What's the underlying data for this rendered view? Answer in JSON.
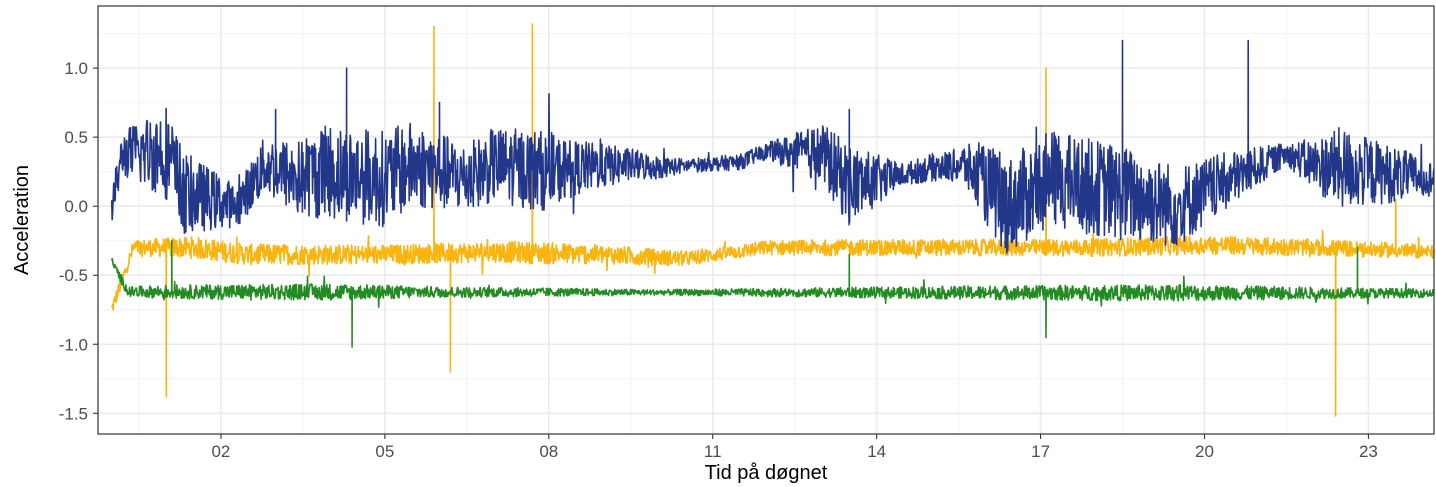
{
  "chart_data": {
    "type": "line",
    "title": "",
    "xlabel": "Tid på døgnet",
    "ylabel": "Acceleration",
    "xlim": [
      -0.25,
      24.2
    ],
    "ylim": [
      -1.65,
      1.45
    ],
    "x_ticks": [
      2,
      5,
      8,
      11,
      14,
      17,
      20,
      23
    ],
    "x_tick_labels": [
      "02",
      "05",
      "08",
      "11",
      "14",
      "17",
      "20",
      "23"
    ],
    "y_ticks": [
      1.0,
      0.5,
      0.0,
      -0.5,
      -1.0,
      -1.5
    ],
    "y_tick_labels": [
      "1.0",
      "0.5",
      "0.0",
      "-0.5",
      "-1.0",
      "-1.5"
    ],
    "grid": true,
    "legend": "none",
    "theme": "bw",
    "series": [
      {
        "color": "#22378a",
        "baseline": [
          [
            0.0,
            0.0
          ],
          [
            0.2,
            0.38
          ],
          [
            1.0,
            0.4
          ],
          [
            1.3,
            0.1
          ],
          [
            2.3,
            0.0
          ],
          [
            2.8,
            0.3
          ],
          [
            3.4,
            0.2
          ],
          [
            4.0,
            0.25
          ],
          [
            5.0,
            0.2
          ],
          [
            5.5,
            0.3
          ],
          [
            6.5,
            0.2
          ],
          [
            7.0,
            0.3
          ],
          [
            8.0,
            0.25
          ],
          [
            8.5,
            0.28
          ],
          [
            9.5,
            0.3
          ],
          [
            10.0,
            0.28
          ],
          [
            11.5,
            0.32
          ],
          [
            12.0,
            0.4
          ],
          [
            13.0,
            0.38
          ],
          [
            13.5,
            0.15
          ],
          [
            14.2,
            0.2
          ],
          [
            15.0,
            0.28
          ],
          [
            15.6,
            0.3
          ],
          [
            16.4,
            0.0
          ],
          [
            17.2,
            0.2
          ],
          [
            18.4,
            0.1
          ],
          [
            19.5,
            0.0
          ],
          [
            20.5,
            0.2
          ],
          [
            21.5,
            0.38
          ],
          [
            22.0,
            0.3
          ],
          [
            23.0,
            0.25
          ],
          [
            24.2,
            0.2
          ]
        ],
        "noise": [
          [
            0.0,
            0.12
          ],
          [
            1.0,
            0.35
          ],
          [
            2.3,
            0.15
          ],
          [
            4.0,
            0.35
          ],
          [
            5.0,
            0.35
          ],
          [
            6.5,
            0.25
          ],
          [
            7.8,
            0.3
          ],
          [
            8.5,
            0.2
          ],
          [
            9.5,
            0.12
          ],
          [
            10.5,
            0.05
          ],
          [
            12.0,
            0.06
          ],
          [
            13.5,
            0.3
          ],
          [
            14.5,
            0.08
          ],
          [
            15.5,
            0.12
          ],
          [
            16.2,
            0.35
          ],
          [
            17.0,
            0.35
          ],
          [
            18.5,
            0.35
          ],
          [
            19.5,
            0.3
          ],
          [
            20.5,
            0.2
          ],
          [
            21.5,
            0.08
          ],
          [
            22.5,
            0.3
          ],
          [
            23.5,
            0.2
          ],
          [
            24.2,
            0.12
          ]
        ],
        "spikes": [
          [
            4.3,
            1.0
          ],
          [
            18.5,
            1.2
          ],
          [
            20.8,
            1.2
          ],
          [
            3.0,
            0.7
          ],
          [
            13.5,
            0.7
          ],
          [
            6.0,
            0.75
          ]
        ]
      },
      {
        "color": "#fbb40d",
        "baseline": [
          [
            0.0,
            -0.75
          ],
          [
            0.4,
            -0.3
          ],
          [
            1.5,
            -0.3
          ],
          [
            2.5,
            -0.35
          ],
          [
            5.0,
            -0.35
          ],
          [
            7.0,
            -0.33
          ],
          [
            9.0,
            -0.35
          ],
          [
            10.5,
            -0.38
          ],
          [
            12.0,
            -0.3
          ],
          [
            14.0,
            -0.3
          ],
          [
            16.0,
            -0.3
          ],
          [
            18.0,
            -0.3
          ],
          [
            20.0,
            -0.28
          ],
          [
            22.0,
            -0.3
          ],
          [
            24.2,
            -0.33
          ]
        ],
        "noise": [
          [
            0.0,
            0.05
          ],
          [
            1.5,
            0.08
          ],
          [
            5.0,
            0.07
          ],
          [
            8.0,
            0.08
          ],
          [
            11.0,
            0.05
          ],
          [
            14.0,
            0.06
          ],
          [
            17.0,
            0.06
          ],
          [
            20.0,
            0.07
          ],
          [
            24.2,
            0.05
          ]
        ],
        "spikes": [
          [
            5.9,
            1.3
          ],
          [
            7.7,
            1.32
          ],
          [
            17.1,
            1.0
          ],
          [
            1.0,
            -1.38
          ],
          [
            6.2,
            -1.2
          ],
          [
            22.4,
            -1.52
          ],
          [
            23.5,
            0.05
          ]
        ]
      },
      {
        "color": "#228b22",
        "baseline": [
          [
            0.0,
            -0.4
          ],
          [
            0.3,
            -0.62
          ],
          [
            24.2,
            -0.63
          ]
        ],
        "noise": [
          [
            0.0,
            0.03
          ],
          [
            1.0,
            0.05
          ],
          [
            4.0,
            0.06
          ],
          [
            6.0,
            0.04
          ],
          [
            10.0,
            0.02
          ],
          [
            14.0,
            0.04
          ],
          [
            16.0,
            0.05
          ],
          [
            19.5,
            0.06
          ],
          [
            22.5,
            0.04
          ],
          [
            24.2,
            0.03
          ]
        ],
        "spikes": [
          [
            4.4,
            -1.02
          ],
          [
            17.1,
            -0.95
          ],
          [
            1.1,
            -0.25
          ],
          [
            13.5,
            -0.35
          ],
          [
            22.8,
            -0.3
          ]
        ]
      }
    ]
  }
}
